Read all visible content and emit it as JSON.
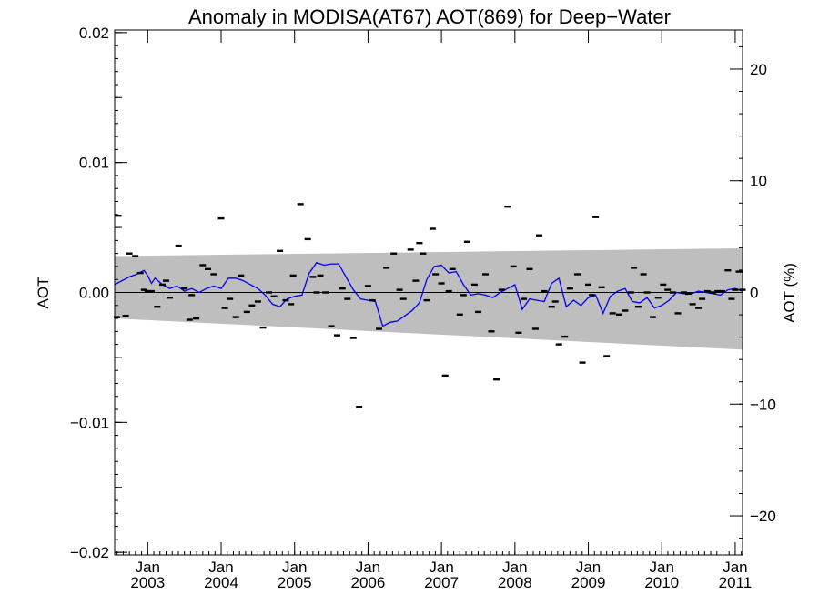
{
  "chart_data": {
    "type": "scatter",
    "title": "Anomaly in MODISA(AT67) AOT(869) for Deep−Water",
    "ylabel": "AOT",
    "y2label": "AOT (%)",
    "xlim": [
      2002.55,
      2011.1
    ],
    "ylim": [
      -0.0202,
      0.0202
    ],
    "y2lim": [
      -23.5,
      23.5
    ],
    "grid": false,
    "zero_line": true,
    "colors": {
      "line": "#0000ee",
      "band": "#bebebe",
      "marker": "#000000",
      "axis": "#000000"
    },
    "x_ticks": [
      {
        "value": 2003,
        "month": "Jan",
        "year": "2003"
      },
      {
        "value": 2004,
        "month": "Jan",
        "year": "2004"
      },
      {
        "value": 2005,
        "month": "Jan",
        "year": "2005"
      },
      {
        "value": 2006,
        "month": "Jan",
        "year": "2006"
      },
      {
        "value": 2007,
        "month": "Jan",
        "year": "2007"
      },
      {
        "value": 2008,
        "month": "Jan",
        "year": "2008"
      },
      {
        "value": 2009,
        "month": "Jan",
        "year": "2009"
      },
      {
        "value": 2010,
        "month": "Jan",
        "year": "2010"
      },
      {
        "value": 2011,
        "month": "Jan",
        "year": "2011"
      }
    ],
    "y_ticks": [
      {
        "value": 0.02,
        "label": "0.02"
      },
      {
        "value": 0.01,
        "label": "0.01"
      },
      {
        "value": 0.0,
        "label": "0.00"
      },
      {
        "value": -0.01,
        "label": "−0.01"
      },
      {
        "value": -0.02,
        "label": "−0.02"
      }
    ],
    "y2_ticks": [
      {
        "value": 20,
        "label": "20"
      },
      {
        "value": 10,
        "label": "10"
      },
      {
        "value": 0,
        "label": "0"
      },
      {
        "value": -10,
        "label": "−10"
      },
      {
        "value": -20,
        "label": "−20"
      }
    ],
    "band": {
      "x": [
        2002.55,
        2011.1
      ],
      "upper": [
        0.0028,
        0.0034
      ],
      "lower": [
        -0.002,
        -0.0044
      ]
    },
    "series": [
      {
        "kind": "line",
        "x": [
          2002.55,
          2002.65,
          2002.75,
          2002.85,
          2002.95,
          2003.0,
          2003.05,
          2003.1,
          2003.2,
          2003.3,
          2003.4,
          2003.5,
          2003.6,
          2003.7,
          2003.8,
          2003.9,
          2004.0,
          2004.1,
          2004.2,
          2004.3,
          2004.4,
          2004.5,
          2004.6,
          2004.7,
          2004.8,
          2004.9,
          2005.0,
          2005.1,
          2005.2,
          2005.3,
          2005.4,
          2005.5,
          2005.6,
          2005.7,
          2005.8,
          2005.9,
          2006.0,
          2006.1,
          2006.2,
          2006.3,
          2006.4,
          2006.5,
          2006.6,
          2006.7,
          2006.8,
          2006.9,
          2007.0,
          2007.1,
          2007.2,
          2007.3,
          2007.4,
          2007.5,
          2007.6,
          2007.7,
          2007.8,
          2007.9,
          2008.0,
          2008.1,
          2008.2,
          2008.3,
          2008.4,
          2008.5,
          2008.6,
          2008.7,
          2008.8,
          2008.9,
          2009.0,
          2009.1,
          2009.2,
          2009.3,
          2009.4,
          2009.5,
          2009.6,
          2009.7,
          2009.8,
          2009.9,
          2010.0,
          2010.1,
          2010.2,
          2010.3,
          2010.4,
          2010.5,
          2010.6,
          2010.7,
          2010.8,
          2010.9,
          2011.0,
          2011.1
        ],
        "y": [
          0.0006,
          0.0009,
          0.0012,
          0.0014,
          0.0017,
          0.0013,
          0.0007,
          0.0011,
          0.0006,
          0.0003,
          0.0005,
          0.0001,
          0.0003,
          0.0,
          0.0003,
          0.0005,
          0.0003,
          0.0011,
          0.0011,
          0.0009,
          0.0006,
          0.0003,
          -0.0002,
          -0.0009,
          -0.0011,
          -0.0005,
          -0.0003,
          -0.0002,
          0.0015,
          0.0023,
          0.0021,
          0.0022,
          0.0022,
          0.0012,
          0.0002,
          -0.0005,
          -0.0006,
          -0.0007,
          -0.0026,
          -0.0023,
          -0.0022,
          -0.0018,
          -0.0014,
          -0.0008,
          0.001,
          0.002,
          0.0021,
          0.0015,
          0.0016,
          0.0006,
          -0.0002,
          -0.0001,
          -0.0002,
          -0.0004,
          0.0,
          0.0003,
          0.0006,
          -0.0013,
          -0.0005,
          -0.0006,
          -0.0007,
          0.0007,
          0.0011,
          -0.0011,
          -0.0006,
          -0.001,
          -0.0004,
          -0.0002,
          -0.0016,
          -0.0003,
          0.0001,
          0.0003,
          -0.0007,
          -0.0008,
          -0.0004,
          -0.0012,
          -0.001,
          -0.0006,
          0.0,
          -0.0001,
          -0.0001,
          0.0001,
          0.0,
          -0.0001,
          -0.0002,
          0.0002,
          0.0003,
          0.0001
        ]
      },
      {
        "kind": "markers",
        "x": [
          2002.58,
          2002.6,
          2002.7,
          2002.75,
          2002.83,
          2002.9,
          2002.95,
          2003.0,
          2003.05,
          2003.13,
          2003.2,
          2003.25,
          2003.3,
          2003.42,
          2003.5,
          2003.57,
          2003.6,
          2003.66,
          2003.75,
          2003.82,
          2003.9,
          2004.0,
          2004.05,
          2004.12,
          2004.2,
          2004.27,
          2004.35,
          2004.42,
          2004.5,
          2004.57,
          2004.65,
          2004.72,
          2004.8,
          2004.88,
          2004.95,
          2004.98,
          2005.08,
          2005.18,
          2005.25,
          2005.3,
          2005.35,
          2005.42,
          2005.5,
          2005.58,
          2005.65,
          2005.72,
          2005.8,
          2005.88,
          2006.0,
          2006.06,
          2006.15,
          2006.25,
          2006.35,
          2006.43,
          2006.48,
          2006.58,
          2006.65,
          2006.7,
          2006.75,
          2006.8,
          2006.88,
          2006.92,
          2007.0,
          2007.05,
          2007.1,
          2007.15,
          2007.25,
          2007.3,
          2007.35,
          2007.45,
          2007.5,
          2007.6,
          2007.68,
          2007.75,
          2007.82,
          2007.9,
          2007.98,
          2008.05,
          2008.12,
          2008.2,
          2008.28,
          2008.33,
          2008.4,
          2008.5,
          2008.55,
          2008.6,
          2008.68,
          2008.75,
          2008.85,
          2008.92,
          2009.0,
          2009.05,
          2009.1,
          2009.18,
          2009.25,
          2009.33,
          2009.42,
          2009.5,
          2009.58,
          2009.62,
          2009.68,
          2009.75,
          2009.8,
          2009.88,
          2009.95,
          2010.02,
          2010.08,
          2010.15,
          2010.22,
          2010.3,
          2010.36,
          2010.42,
          2010.5,
          2010.55,
          2010.62,
          2010.7,
          2010.76,
          2010.82,
          2010.9,
          2010.95,
          2011.0,
          2011.05,
          2011.1
        ],
        "y": [
          -0.0019,
          0.0059,
          -0.0018,
          0.003,
          0.0028,
          0.0015,
          0.0002,
          0.0001,
          0.0001,
          -0.0011,
          0.0006,
          0.0009,
          -0.0004,
          0.0036,
          0.0003,
          -0.0021,
          -0.0002,
          -0.002,
          0.0021,
          0.0018,
          0.0014,
          0.0057,
          -0.0012,
          -0.0005,
          -0.0019,
          0.0013,
          -0.0015,
          -0.001,
          -0.0007,
          -0.0027,
          0.0,
          -0.0003,
          0.0032,
          -0.0006,
          -0.0009,
          0.0013,
          0.0068,
          0.0041,
          0.0012,
          0.0,
          0.0013,
          0.0,
          -0.0026,
          -0.0033,
          0.0003,
          -0.0005,
          -0.0035,
          -0.0088,
          0.0005,
          -0.0006,
          -0.0028,
          0.0019,
          0.003,
          0.0002,
          -0.0005,
          0.0033,
          0.0009,
          0.0038,
          0.003,
          -0.0006,
          0.0049,
          0.0014,
          0.0007,
          -0.0064,
          0.0001,
          0.0018,
          -0.0017,
          -0.0002,
          0.0039,
          0.0006,
          -0.0015,
          0.0014,
          -0.003,
          -0.0067,
          0.0002,
          0.0066,
          0.002,
          -0.0031,
          -0.0005,
          0.0018,
          -0.0028,
          0.0044,
          0.0001,
          -0.0011,
          -0.0007,
          -0.004,
          -0.0034,
          0.0003,
          0.0014,
          -0.0054,
          0.0006,
          -0.0002,
          0.0058,
          0.0004,
          -0.0049,
          -0.0016,
          -0.0017,
          -0.0014,
          0.0,
          0.0019,
          -0.0011,
          0.0014,
          0.0,
          -0.0019,
          -0.0004,
          0.0006,
          0.0002,
          0.0,
          -0.0016,
          0.0,
          -0.0001,
          -0.0009,
          -0.0012,
          -0.0005,
          0.0001,
          0.0,
          0.0001,
          0.0001,
          0.0017,
          -0.0005,
          0.0002,
          0.0016,
          0.0002
        ]
      }
    ]
  }
}
